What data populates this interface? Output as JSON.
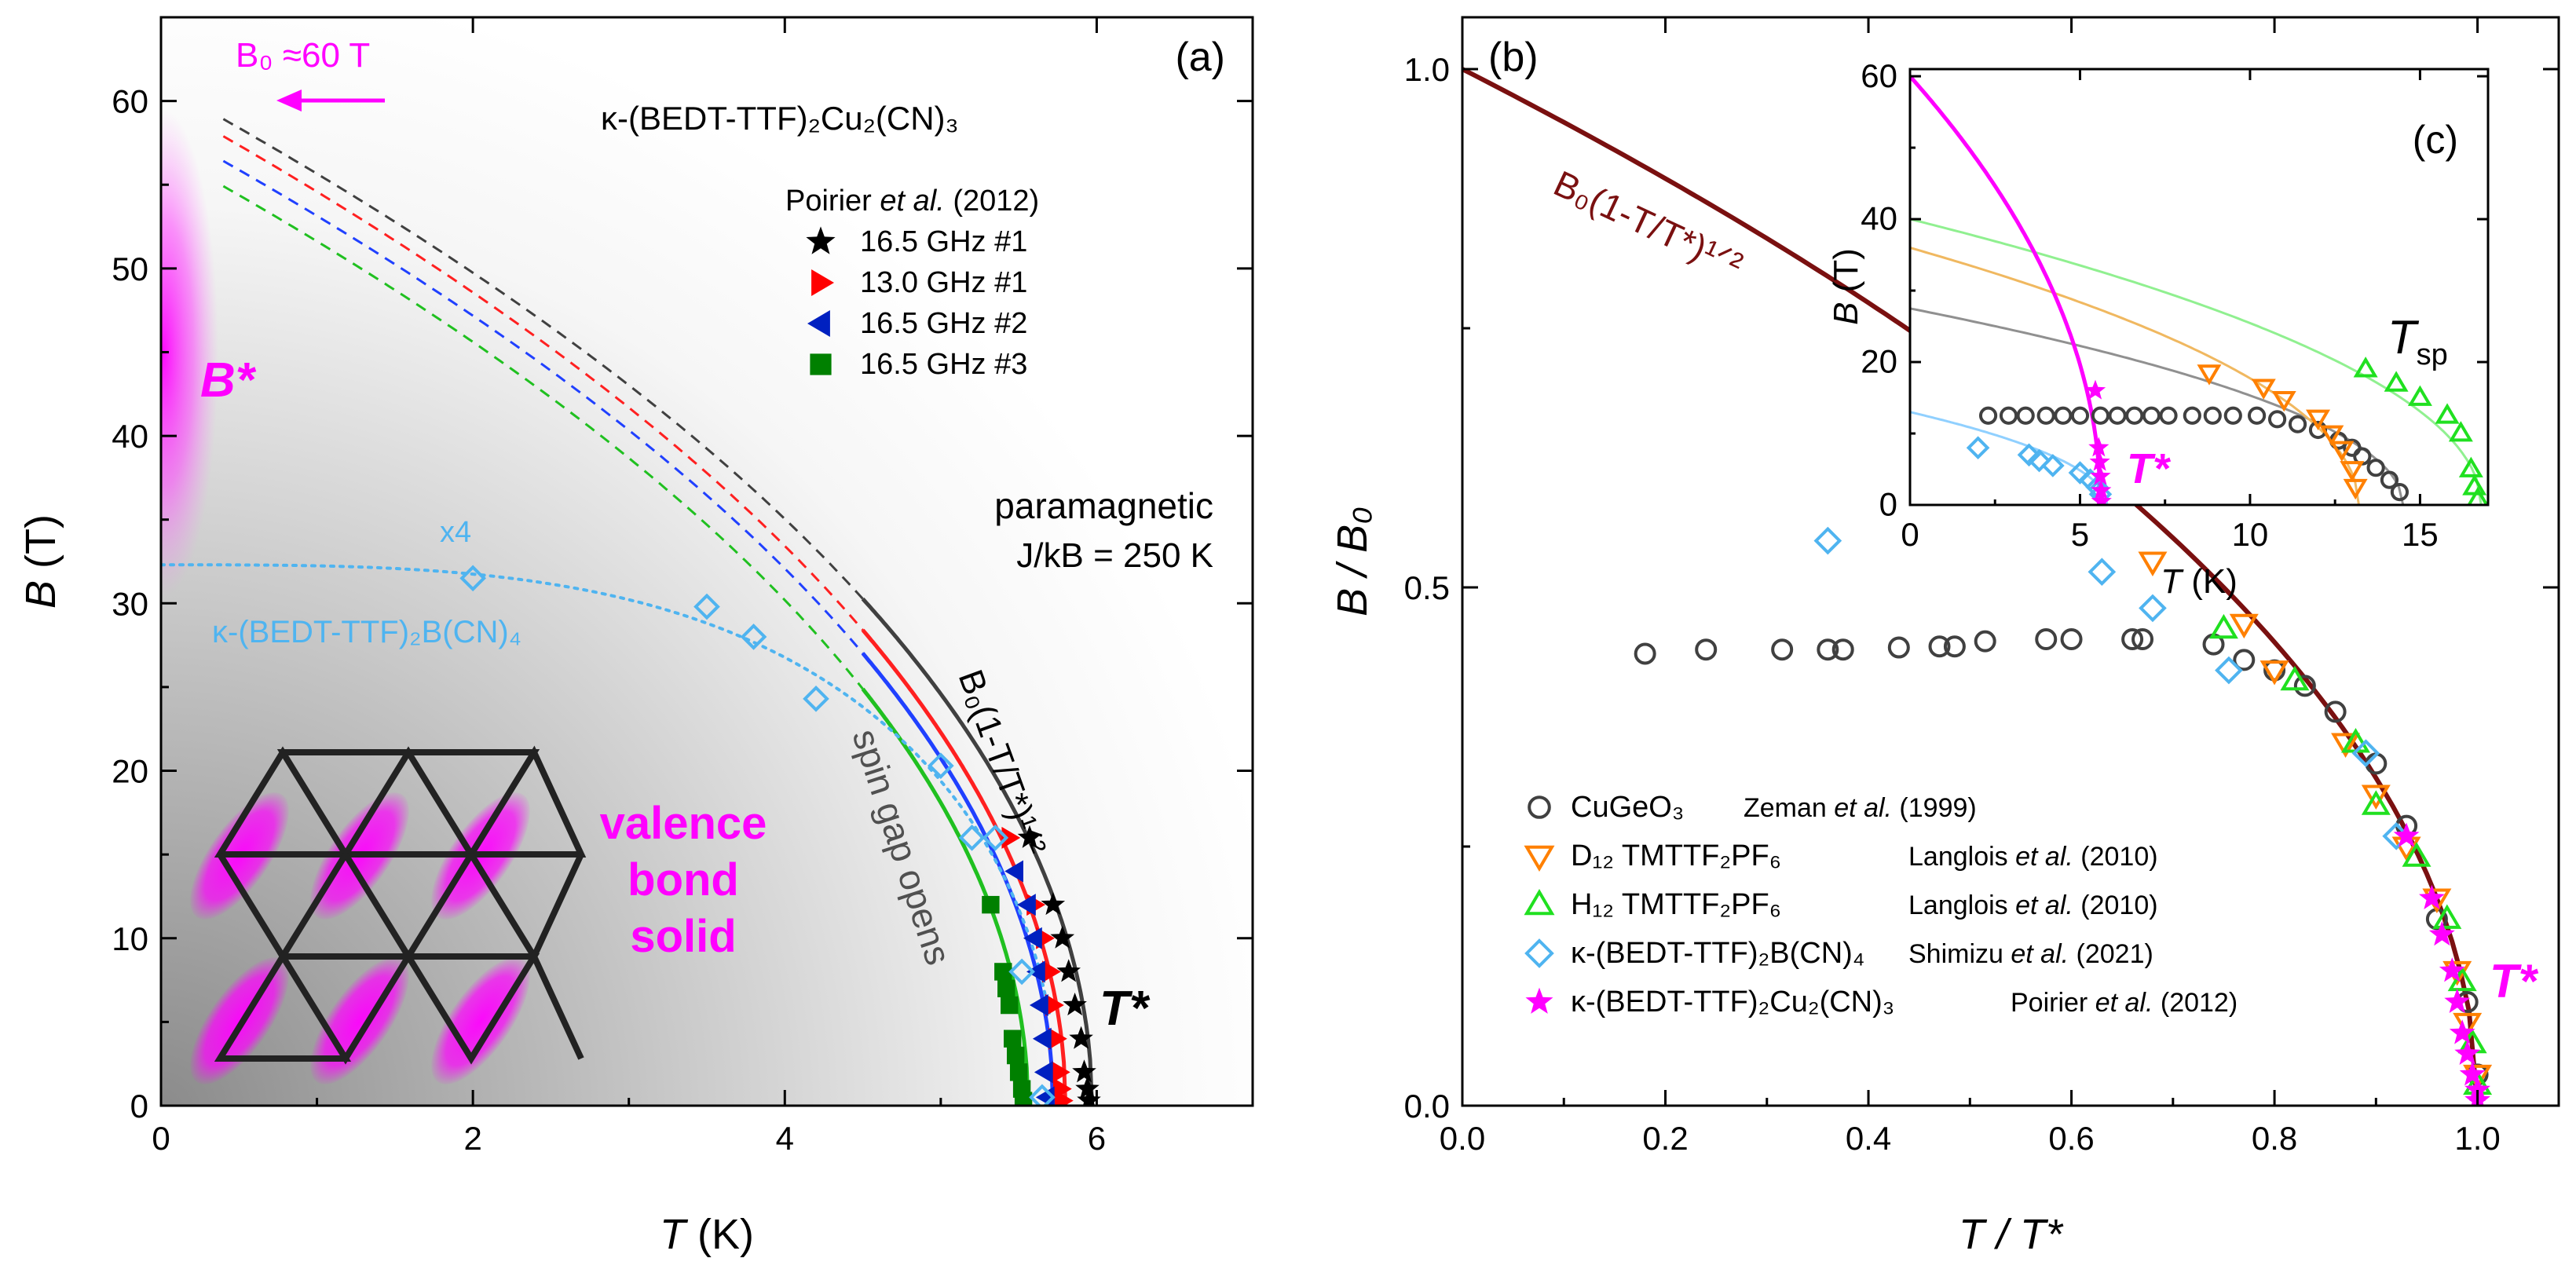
{
  "chart_data": [
    {
      "panel": "(a)",
      "type": "scatter",
      "xlabel_var": "T",
      "xlabel_unit": " (K)",
      "ylabel_var": "B",
      "ylabel_unit": " (T)",
      "xlim": [
        0,
        7
      ],
      "ylim": [
        0,
        65
      ],
      "xticks": [
        0,
        2,
        4,
        6
      ],
      "yticks": [
        0,
        10,
        20,
        30,
        40,
        50,
        60
      ],
      "compound_label": "κ-(BEDT-TTF)₂Cu₂(CN)₃",
      "legend_title": "Poirier et al. (2012)",
      "series": [
        {
          "name": "16.5 GHz #1",
          "marker": "star",
          "color": "#000000",
          "points": [
            [
              5.57,
              16
            ],
            [
              5.72,
              12
            ],
            [
              5.78,
              10
            ],
            [
              5.82,
              8
            ],
            [
              5.86,
              6
            ],
            [
              5.9,
              4
            ],
            [
              5.92,
              2
            ],
            [
              5.94,
              1
            ],
            [
              5.95,
              0.3
            ]
          ]
        },
        {
          "name": "13.0 GHz #1",
          "marker": "triangle-right",
          "color": "#ff0000",
          "points": [
            [
              5.44,
              16
            ],
            [
              5.6,
              12
            ],
            [
              5.66,
              10
            ],
            [
              5.7,
              8
            ],
            [
              5.72,
              6
            ],
            [
              5.74,
              4
            ],
            [
              5.76,
              2
            ],
            [
              5.77,
              1
            ],
            [
              5.78,
              0.3
            ]
          ]
        },
        {
          "name": "16.5 GHz #2",
          "marker": "triangle-left",
          "color": "#0020c0",
          "points": [
            [
              5.48,
              14
            ],
            [
              5.56,
              12
            ],
            [
              5.6,
              10
            ],
            [
              5.62,
              8
            ],
            [
              5.64,
              6
            ],
            [
              5.66,
              4
            ],
            [
              5.67,
              2
            ],
            [
              5.68,
              0.5
            ]
          ]
        },
        {
          "name": "16.5 GHz #3",
          "marker": "square",
          "color": "#008000",
          "points": [
            [
              5.32,
              12
            ],
            [
              5.4,
              8
            ],
            [
              5.42,
              7
            ],
            [
              5.44,
              6
            ],
            [
              5.46,
              4
            ],
            [
              5.48,
              3
            ],
            [
              5.5,
              2
            ],
            [
              5.52,
              1
            ],
            [
              5.53,
              0.3
            ]
          ]
        },
        {
          "name": "κ-(BEDT-TTF)₂B(CN)₄ (x4)",
          "marker": "diamond-open",
          "color": "#4fb4f0",
          "points": [
            [
              2.0,
              31.5
            ],
            [
              3.5,
              29.8
            ],
            [
              3.8,
              28
            ],
            [
              4.2,
              24.3
            ],
            [
              5.0,
              20.3
            ],
            [
              5.2,
              16
            ],
            [
              5.35,
              16
            ],
            [
              5.52,
              8
            ],
            [
              5.65,
              0.5
            ]
          ]
        }
      ],
      "fits": [
        {
          "name": "fit-black",
          "color": "#404040",
          "B0": 61,
          "Tstar": 5.97
        },
        {
          "name": "fit-red",
          "color": "#ff2020",
          "B0": 60,
          "Tstar": 5.8
        },
        {
          "name": "fit-blue",
          "color": "#2040ff",
          "B0": 58.5,
          "Tstar": 5.72
        },
        {
          "name": "fit-green",
          "color": "#20c020",
          "B0": 57,
          "Tstar": 5.56
        }
      ],
      "annotations": {
        "b0_label": "B₀ ≈60 T",
        "bstar": "B*",
        "tstar": "T*",
        "paramagnetic": "paramagnetic",
        "coupling": "J/kB = 250 K",
        "fit_formula": "B₀(1-T/T*)¹ᐟ²",
        "spin_gap": "spin gap opens",
        "vbs_line1": "valence",
        "vbs_line2": "bond",
        "vbs_line3": "solid",
        "x4": "x4",
        "bcn4_label": "κ-(BEDT-TTF)₂B(CN)₄"
      }
    },
    {
      "panel": "(b)",
      "type": "scatter",
      "xlabel": "T / T*",
      "ylabel": "B / B₀",
      "xlim": [
        0,
        1.08
      ],
      "ylim": [
        0,
        1.05
      ],
      "xticks": [
        0.0,
        0.2,
        0.4,
        0.6,
        0.8,
        1.0
      ],
      "yticks": [
        0.0,
        0.5,
        1.0
      ],
      "fit_label": "B₀(1-T/T*)¹ᐟ²",
      "tstar_label": "T*",
      "series": [
        {
          "name": "CuGeO₃",
          "ref": "Zeman et al. (1999)",
          "marker": "circle-open",
          "color": "#404040",
          "points": [
            [
              0.18,
              0.436
            ],
            [
              0.24,
              0.44
            ],
            [
              0.315,
              0.44
            ],
            [
              0.36,
              0.44
            ],
            [
              0.375,
              0.44
            ],
            [
              0.43,
              0.442
            ],
            [
              0.47,
              0.443
            ],
            [
              0.485,
              0.443
            ],
            [
              0.515,
              0.448
            ],
            [
              0.575,
              0.45
            ],
            [
              0.6,
              0.45
            ],
            [
              0.66,
              0.45
            ],
            [
              0.67,
              0.45
            ],
            [
              0.74,
              0.445
            ],
            [
              0.77,
              0.43
            ],
            [
              0.8,
              0.42
            ],
            [
              0.83,
              0.405
            ],
            [
              0.86,
              0.38
            ],
            [
              0.9,
              0.33
            ],
            [
              0.93,
              0.27
            ],
            [
              0.96,
              0.18
            ],
            [
              0.99,
              0.1
            ],
            [
              1.0,
              0.03
            ]
          ]
        },
        {
          "name": "D₁₂ TMTTF₂PF₆",
          "ref": "Langlois et al. (2010)",
          "marker": "triangle-down-open",
          "color": "#ff8000",
          "points": [
            [
              0.68,
              0.525
            ],
            [
              0.77,
              0.465
            ],
            [
              0.8,
              0.42
            ],
            [
              0.87,
              0.35
            ],
            [
              0.9,
              0.3
            ],
            [
              0.93,
              0.25
            ],
            [
              0.96,
              0.2
            ],
            [
              0.98,
              0.13
            ],
            [
              0.99,
              0.08
            ],
            [
              1.0,
              0.03
            ]
          ]
        },
        {
          "name": "H₁₂ TMTTF₂PF₆",
          "ref": "Langlois et al. (2010)",
          "marker": "triangle-up-open",
          "color": "#20e020",
          "points": [
            [
              0.75,
              0.46
            ],
            [
              0.82,
              0.41
            ],
            [
              0.88,
              0.35
            ],
            [
              0.9,
              0.29
            ],
            [
              0.94,
              0.24
            ],
            [
              0.97,
              0.18
            ],
            [
              0.985,
              0.12
            ],
            [
              0.995,
              0.06
            ],
            [
              1.0,
              0.02
            ]
          ]
        },
        {
          "name": "κ-(BEDT-TTF)₂B(CN)₄",
          "ref": "Shimizu et al. (2021)",
          "marker": "diamond-open",
          "color": "#4fb4f0",
          "points": [
            [
              0.36,
              0.545
            ],
            [
              0.63,
              0.515
            ],
            [
              0.68,
              0.48
            ],
            [
              0.755,
              0.42
            ],
            [
              0.89,
              0.34
            ],
            [
              0.92,
              0.26
            ]
          ]
        },
        {
          "name": "κ-(BEDT-TTF)₂Cu₂(CN)₃",
          "ref": "Poirier et al. (2012)",
          "marker": "star",
          "color": "#ff00ff",
          "points": [
            [
              0.93,
              0.26
            ],
            [
              0.955,
              0.2
            ],
            [
              0.965,
              0.165
            ],
            [
              0.975,
              0.13
            ],
            [
              0.98,
              0.1
            ],
            [
              0.985,
              0.07
            ],
            [
              0.99,
              0.05
            ],
            [
              0.995,
              0.03
            ],
            [
              1.0,
              0.015
            ],
            [
              1.0,
              0.005
            ]
          ]
        }
      ]
    },
    {
      "panel": "(c)",
      "type": "scatter",
      "xlabel_var": "T",
      "xlabel_unit": " (K)",
      "ylabel_var": "B",
      "ylabel_unit": " (T)",
      "xlim": [
        0,
        17
      ],
      "ylim": [
        0,
        61
      ],
      "xticks": [
        0,
        5,
        10,
        15
      ],
      "yticks": [
        0,
        20,
        40,
        60
      ],
      "tsp_label": "Tsp",
      "tstar_label": "T*",
      "series": [
        {
          "name": "CuGeO₃",
          "marker": "circle-open",
          "color": "#404040",
          "points": [
            [
              2.3,
              12.5
            ],
            [
              2.9,
              12.5
            ],
            [
              3.4,
              12.5
            ],
            [
              4.0,
              12.5
            ],
            [
              4.5,
              12.5
            ],
            [
              5.0,
              12.5
            ],
            [
              5.6,
              12.5
            ],
            [
              6.1,
              12.5
            ],
            [
              6.6,
              12.5
            ],
            [
              7.1,
              12.5
            ],
            [
              7.6,
              12.5
            ],
            [
              8.3,
              12.5
            ],
            [
              8.9,
              12.5
            ],
            [
              9.5,
              12.5
            ],
            [
              10.2,
              12.5
            ],
            [
              10.8,
              12
            ],
            [
              11.4,
              11.3
            ],
            [
              12,
              10.5
            ],
            [
              12.6,
              9
            ],
            [
              13.0,
              8
            ],
            [
              13.3,
              6.8
            ],
            [
              13.7,
              5.2
            ],
            [
              14.1,
              3.5
            ],
            [
              14.4,
              1.8
            ]
          ]
        },
        {
          "name": "D₁₂ TMTTF₂PF₆",
          "marker": "triangle-down-open",
          "color": "#ff8000",
          "points": [
            [
              8.8,
              18.5
            ],
            [
              10.4,
              16.5
            ],
            [
              11.0,
              14.8
            ],
            [
              12.0,
              12.2
            ],
            [
              12.4,
              10
            ],
            [
              12.7,
              7.8
            ],
            [
              13.0,
              5
            ],
            [
              13.1,
              2.5
            ]
          ]
        },
        {
          "name": "H₁₂ TMTTF₂PF₆",
          "marker": "triangle-up-open",
          "color": "#20e020",
          "points": [
            [
              13.4,
              19
            ],
            [
              14.3,
              17
            ],
            [
              15.0,
              15
            ],
            [
              15.8,
              12.5
            ],
            [
              16.2,
              10
            ],
            [
              16.5,
              5
            ],
            [
              16.6,
              2.5
            ],
            [
              16.7,
              0.8
            ]
          ]
        },
        {
          "name": "κ-(BEDT-TTF)₂B(CN)₄",
          "marker": "diamond-open",
          "color": "#4fb4f0",
          "points": [
            [
              2.0,
              8
            ],
            [
              3.5,
              7
            ],
            [
              3.8,
              6.2
            ],
            [
              4.2,
              5.5
            ],
            [
              5.0,
              4.5
            ],
            [
              5.3,
              3.5
            ],
            [
              5.5,
              2.5
            ],
            [
              5.6,
              1.5
            ]
          ]
        },
        {
          "name": "κ-(BEDT-TTF)₂Cu₂(CN)₃",
          "marker": "star",
          "color": "#ff00ff",
          "points": [
            [
              5.45,
              16
            ],
            [
              5.55,
              8
            ],
            [
              5.58,
              6
            ],
            [
              5.6,
              4
            ],
            [
              5.62,
              2
            ],
            [
              5.63,
              0.5
            ]
          ]
        }
      ],
      "fits": [
        {
          "name": "fit-cugeo3",
          "color": "#909090",
          "B0": 27.5,
          "Tstar": 14.5
        },
        {
          "name": "fit-d12",
          "color": "#f0b860",
          "B0": 36,
          "Tstar": 13.2
        },
        {
          "name": "fit-h12",
          "color": "#90f090",
          "B0": 40,
          "Tstar": 16.8
        },
        {
          "name": "fit-bcn4",
          "color": "#90d0ff",
          "B0": 13,
          "Tstar": 5.8
        },
        {
          "name": "fit-cu2cn3",
          "color": "#ff00ff",
          "B0": 60,
          "Tstar": 5.6
        }
      ]
    }
  ],
  "panel_labels": {
    "a": "(a)",
    "b": "(b)",
    "c": "(c)"
  },
  "legend_a": {
    "title_author": "Poirier ",
    "title_etal": "et al.",
    "title_year": " (2012)"
  },
  "legend_b": [
    {
      "name": "CuGeO₃",
      "author": "Zeman ",
      "etal": "et al.",
      "year": " (1999)"
    },
    {
      "name": "D₁₂ TMTTF₂PF₆",
      "author": "Langlois ",
      "etal": "et al.",
      "year": " (2010)"
    },
    {
      "name": "H₁₂ TMTTF₂PF₆",
      "author": "Langlois ",
      "etal": "et al.",
      "year": " (2010)"
    },
    {
      "name": "κ-(BEDT-TTF)₂B(CN)₄",
      "author": "Shimizu ",
      "etal": "et al.",
      "year": " (2021)"
    },
    {
      "name": "κ-(BEDT-TTF)₂Cu₂(CN)₃",
      "author": "Poirier ",
      "etal": "et al.",
      "year": " (2012)"
    }
  ]
}
